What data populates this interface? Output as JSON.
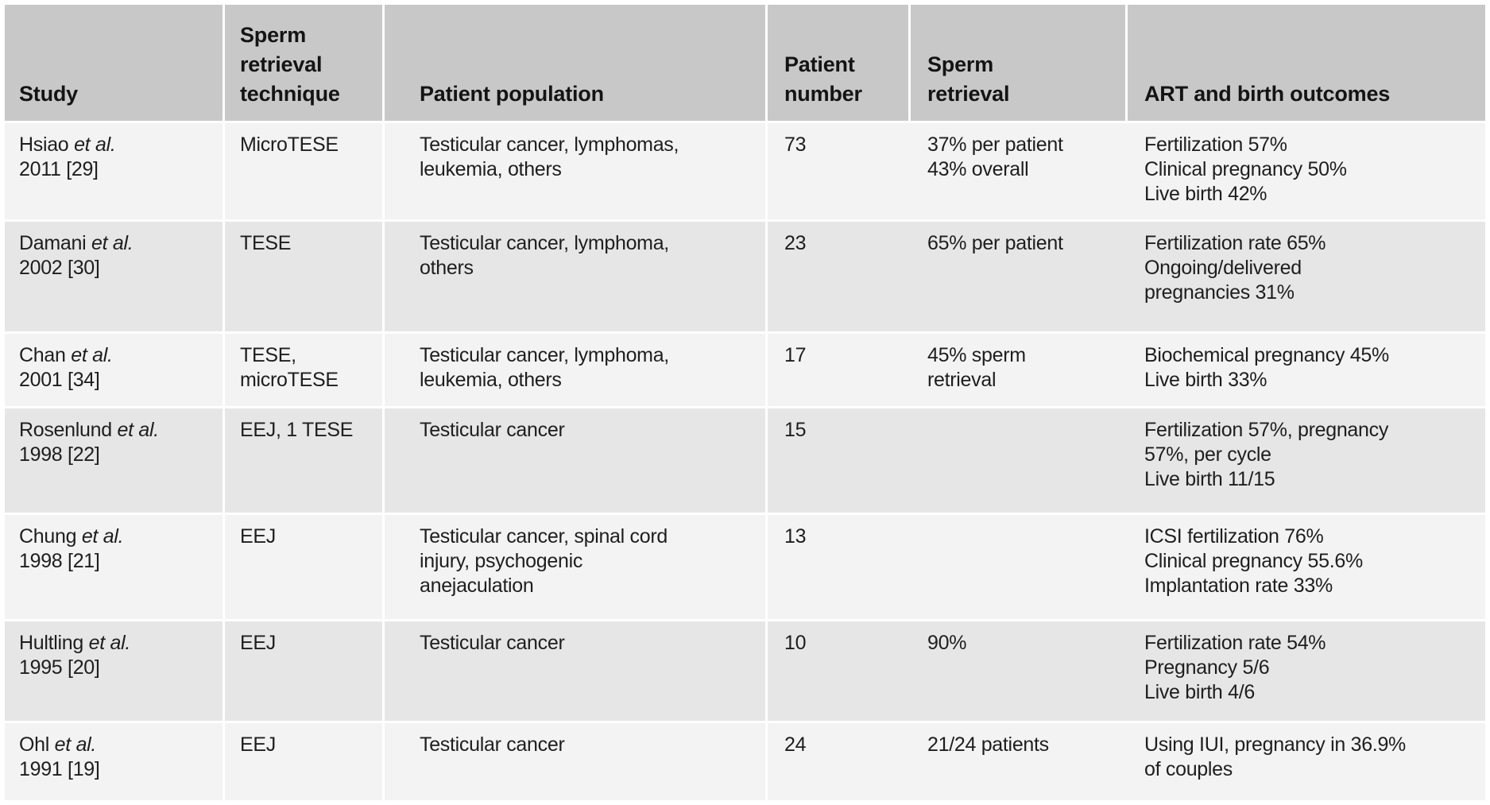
{
  "table": {
    "colors": {
      "header_bg": "#c8c8c8",
      "row_light": "#f3f3f3",
      "row_dark": "#e6e6e6",
      "text": "#1e1e1e"
    },
    "columns": [
      {
        "id": "study",
        "lines": [
          "Study"
        ]
      },
      {
        "id": "technique",
        "lines": [
          "Sperm",
          "retrieval",
          "technique"
        ]
      },
      {
        "id": "population",
        "lines": [
          "Patient population"
        ]
      },
      {
        "id": "patient_number",
        "lines": [
          "Patient",
          "number"
        ]
      },
      {
        "id": "sperm_retrieval",
        "lines": [
          "Sperm",
          "retrieval"
        ]
      },
      {
        "id": "outcomes",
        "lines": [
          "ART and birth outcomes"
        ]
      }
    ],
    "rows": [
      {
        "study": {
          "name": "Hsiao",
          "etal": "et al.",
          "year": "2011 [29]"
        },
        "technique": [
          "MicroTESE"
        ],
        "population": [
          "Testicular cancer, lymphomas,",
          "leukemia, others"
        ],
        "patient_number": "73",
        "sperm_retrieval": [
          "37% per patient",
          "43% overall"
        ],
        "outcomes": [
          "Fertilization 57%",
          "Clinical pregnancy 50%",
          "Live birth 42%"
        ]
      },
      {
        "study": {
          "name": "Damani",
          "etal": "et al.",
          "year": "2002 [30]"
        },
        "technique": [
          "TESE"
        ],
        "population": [
          "Testicular cancer, lymphoma,",
          "others"
        ],
        "patient_number": "23",
        "sperm_retrieval": [
          "65% per patient"
        ],
        "outcomes": [
          "Fertilization rate 65%",
          "Ongoing/delivered",
          "pregnancies 31%"
        ]
      },
      {
        "study": {
          "name": "Chan",
          "etal": "et al.",
          "year": "2001 [34]"
        },
        "technique": [
          "TESE,",
          "microTESE"
        ],
        "population": [
          "Testicular cancer, lymphoma,",
          "leukemia, others"
        ],
        "patient_number": "17",
        "sperm_retrieval": [
          "45% sperm",
          "retrieval"
        ],
        "outcomes": [
          "Biochemical pregnancy 45%",
          "Live birth 33%"
        ]
      },
      {
        "study": {
          "name": "Rosenlund",
          "etal": "et al.",
          "year": "1998 [22]"
        },
        "technique": [
          "EEJ, 1 TESE"
        ],
        "population": [
          "Testicular cancer"
        ],
        "patient_number": "15",
        "sperm_retrieval": [],
        "outcomes": [
          "Fertilization 57%, pregnancy",
          "57%, per cycle",
          "Live birth 11/15"
        ]
      },
      {
        "study": {
          "name": "Chung",
          "etal": "et al.",
          "year": "1998 [21]"
        },
        "technique": [
          "EEJ"
        ],
        "population": [
          "Testicular cancer, spinal cord",
          "injury, psychogenic",
          "anejaculation"
        ],
        "patient_number": "13",
        "sperm_retrieval": [],
        "outcomes": [
          "ICSI fertilization 76%",
          "Clinical pregnancy 55.6%",
          "Implantation rate 33%"
        ]
      },
      {
        "study": {
          "name": "Hultling",
          "etal": "et al.",
          "year": "1995 [20]"
        },
        "technique": [
          "EEJ"
        ],
        "population": [
          "Testicular cancer"
        ],
        "patient_number": "10",
        "sperm_retrieval": [
          "90%"
        ],
        "outcomes": [
          "Fertilization rate 54%",
          "Pregnancy 5/6",
          "Live birth 4/6"
        ]
      },
      {
        "study": {
          "name": "Ohl",
          "etal": "et al.",
          "year": "1991 [19]"
        },
        "technique": [
          "EEJ"
        ],
        "population": [
          "Testicular cancer"
        ],
        "patient_number": "24",
        "sperm_retrieval": [
          "21/24 patients"
        ],
        "outcomes": [
          "Using IUI, pregnancy in 36.9%",
          "of couples"
        ]
      }
    ]
  }
}
